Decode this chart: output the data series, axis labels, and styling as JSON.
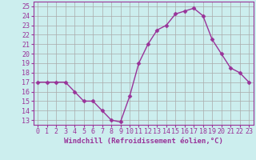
{
  "x": [
    0,
    1,
    2,
    3,
    4,
    5,
    6,
    7,
    8,
    9,
    10,
    11,
    12,
    13,
    14,
    15,
    16,
    17,
    18,
    19,
    20,
    21,
    22,
    23
  ],
  "y": [
    17.0,
    17.0,
    17.0,
    17.0,
    16.0,
    15.0,
    15.0,
    14.0,
    13.0,
    12.8,
    15.5,
    19.0,
    21.0,
    22.5,
    23.0,
    24.2,
    24.5,
    24.8,
    24.0,
    21.5,
    20.0,
    18.5,
    18.0,
    17.0
  ],
  "line_color": "#993399",
  "marker": "D",
  "markersize": 2.5,
  "linewidth": 1.0,
  "bg_color": "#cceeee",
  "grid_color": "#aaaaaa",
  "xlabel": "Windchill (Refroidissement éolien,°C)",
  "xlabel_fontsize": 6.5,
  "tick_fontsize": 6.0,
  "xlim": [
    -0.5,
    23.5
  ],
  "ylim": [
    12.5,
    25.5
  ],
  "yticks": [
    13,
    14,
    15,
    16,
    17,
    18,
    19,
    20,
    21,
    22,
    23,
    24,
    25
  ],
  "xticks": [
    0,
    1,
    2,
    3,
    4,
    5,
    6,
    7,
    8,
    9,
    10,
    11,
    12,
    13,
    14,
    15,
    16,
    17,
    18,
    19,
    20,
    21,
    22,
    23
  ]
}
